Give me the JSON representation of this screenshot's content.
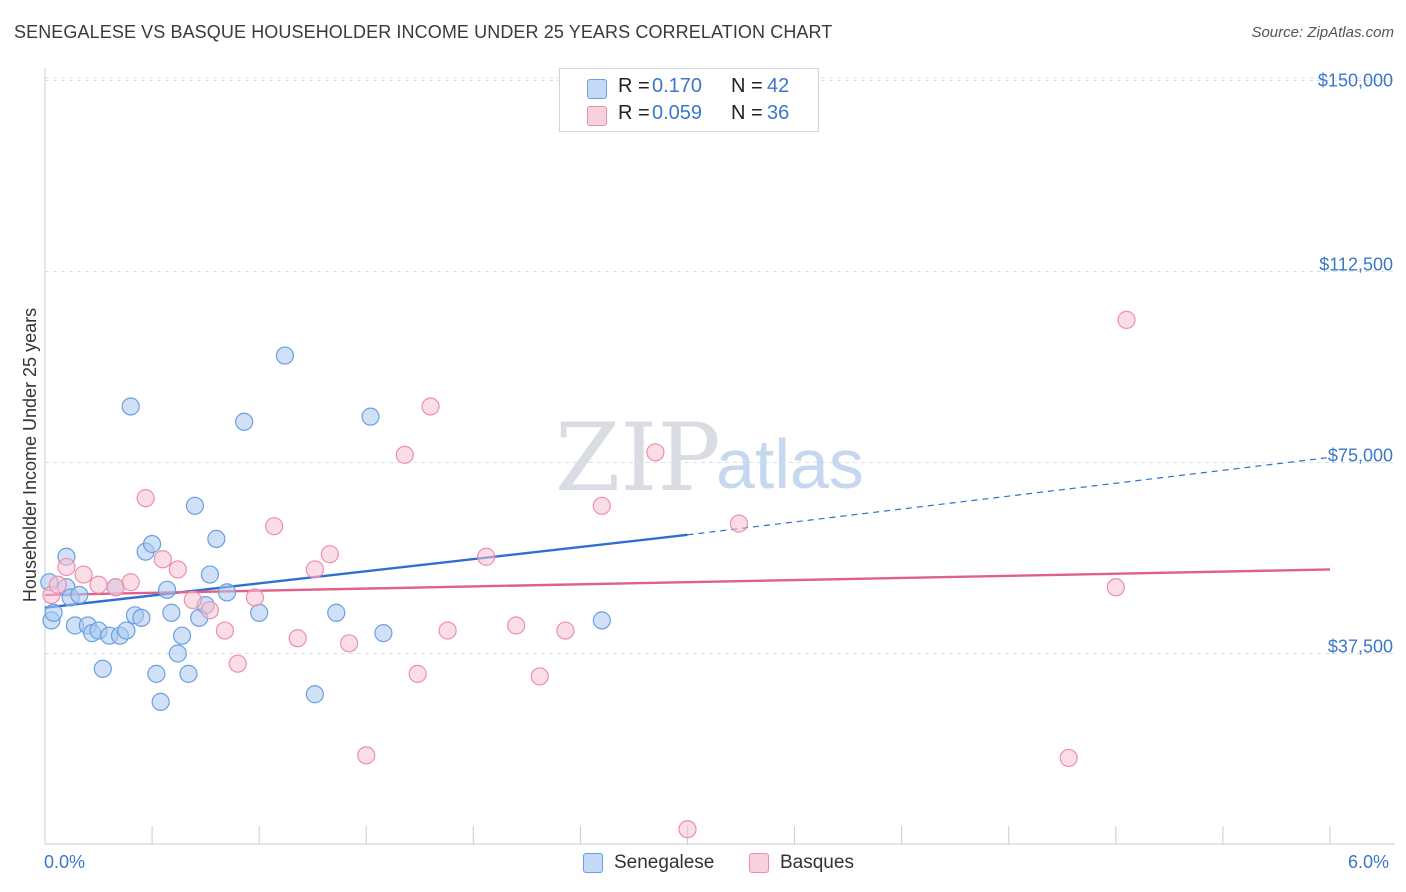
{
  "title": "SENEGALESE VS BASQUE HOUSEHOLDER INCOME UNDER 25 YEARS CORRELATION CHART",
  "source": "Source: ZipAtlas.com",
  "watermark": {
    "zip": "ZIP",
    "atlas": "atlas"
  },
  "legend": {
    "rows": [
      {
        "r_label": "R =",
        "r_value": "0.170",
        "n_label": "N =",
        "n_value": "42",
        "color": "#a9c8f0",
        "stroke": "#6a9fe0"
      },
      {
        "r_label": "R =",
        "r_value": "0.059",
        "n_label": "N =",
        "n_value": "36",
        "color": "#f6c1d2",
        "stroke": "#ec8fae"
      }
    ]
  },
  "x_axis": {
    "min_label": "0.0%",
    "max_label": "6.0%"
  },
  "chart_data": {
    "type": "scatter",
    "ylabel": "Householder Income Under 25 years",
    "xlim": [
      0,
      6
    ],
    "ylim": [
      0,
      155000
    ],
    "yticks": [
      {
        "value": 37500,
        "label": "$37,500"
      },
      {
        "value": 75000,
        "label": "$75,000"
      },
      {
        "value": 112500,
        "label": "$112,500"
      },
      {
        "value": 150000,
        "label": "$150,000"
      }
    ],
    "grid": true,
    "legend_position": "top-center",
    "series": [
      {
        "name": "Senegalese",
        "color": "#a9c8f0",
        "stroke": "#6a9fe0",
        "line_color": "#2f6fd0",
        "trend": {
          "x0": 0.0,
          "y0": 46500,
          "x1": 3.0,
          "y1": 60800,
          "dash_x1": 6.0,
          "dash_y1": 76000
        },
        "points": [
          [
            0.02,
            51500
          ],
          [
            0.03,
            44000
          ],
          [
            0.04,
            45500
          ],
          [
            0.1,
            50500
          ],
          [
            0.1,
            56500
          ],
          [
            0.12,
            48500
          ],
          [
            0.14,
            43000
          ],
          [
            0.16,
            49000
          ],
          [
            0.2,
            43000
          ],
          [
            0.22,
            41500
          ],
          [
            0.25,
            42000
          ],
          [
            0.27,
            34500
          ],
          [
            0.3,
            41000
          ],
          [
            0.33,
            50500
          ],
          [
            0.35,
            41000
          ],
          [
            0.38,
            42000
          ],
          [
            0.4,
            86000
          ],
          [
            0.42,
            45000
          ],
          [
            0.45,
            44500
          ],
          [
            0.47,
            57500
          ],
          [
            0.5,
            59000
          ],
          [
            0.52,
            33500
          ],
          [
            0.54,
            28000
          ],
          [
            0.57,
            50000
          ],
          [
            0.59,
            45500
          ],
          [
            0.62,
            37500
          ],
          [
            0.64,
            41000
          ],
          [
            0.67,
            33500
          ],
          [
            0.7,
            66500
          ],
          [
            0.72,
            44500
          ],
          [
            0.75,
            47000
          ],
          [
            0.77,
            53000
          ],
          [
            0.8,
            60000
          ],
          [
            0.85,
            49500
          ],
          [
            0.93,
            83000
          ],
          [
            1.0,
            45500
          ],
          [
            1.12,
            96000
          ],
          [
            1.26,
            29500
          ],
          [
            1.36,
            45500
          ],
          [
            1.52,
            84000
          ],
          [
            1.58,
            41500
          ],
          [
            2.6,
            44000
          ]
        ]
      },
      {
        "name": "Basques",
        "color": "#f6c1d2",
        "stroke": "#ec8fae",
        "line_color": "#e0608a",
        "trend": {
          "x0": 0.0,
          "y0": 49000,
          "x1": 6.0,
          "y1": 54000
        },
        "points": [
          [
            0.03,
            49000
          ],
          [
            0.06,
            51000
          ],
          [
            0.1,
            54500
          ],
          [
            0.18,
            53000
          ],
          [
            0.25,
            51000
          ],
          [
            0.33,
            50500
          ],
          [
            0.4,
            51500
          ],
          [
            0.47,
            68000
          ],
          [
            0.55,
            56000
          ],
          [
            0.62,
            54000
          ],
          [
            0.69,
            48000
          ],
          [
            0.77,
            46000
          ],
          [
            0.84,
            42000
          ],
          [
            0.9,
            35500
          ],
          [
            0.98,
            48500
          ],
          [
            1.07,
            62500
          ],
          [
            1.18,
            40500
          ],
          [
            1.26,
            54000
          ],
          [
            1.33,
            57000
          ],
          [
            1.42,
            39500
          ],
          [
            1.5,
            17500
          ],
          [
            1.68,
            76500
          ],
          [
            1.74,
            33500
          ],
          [
            1.8,
            86000
          ],
          [
            1.88,
            42000
          ],
          [
            2.06,
            56500
          ],
          [
            2.2,
            43000
          ],
          [
            2.31,
            33000
          ],
          [
            2.43,
            42000
          ],
          [
            2.6,
            66500
          ],
          [
            2.85,
            77000
          ],
          [
            3.0,
            3000
          ],
          [
            3.24,
            63000
          ],
          [
            4.78,
            17000
          ],
          [
            5.0,
            50500
          ],
          [
            5.05,
            103000
          ]
        ]
      }
    ]
  }
}
